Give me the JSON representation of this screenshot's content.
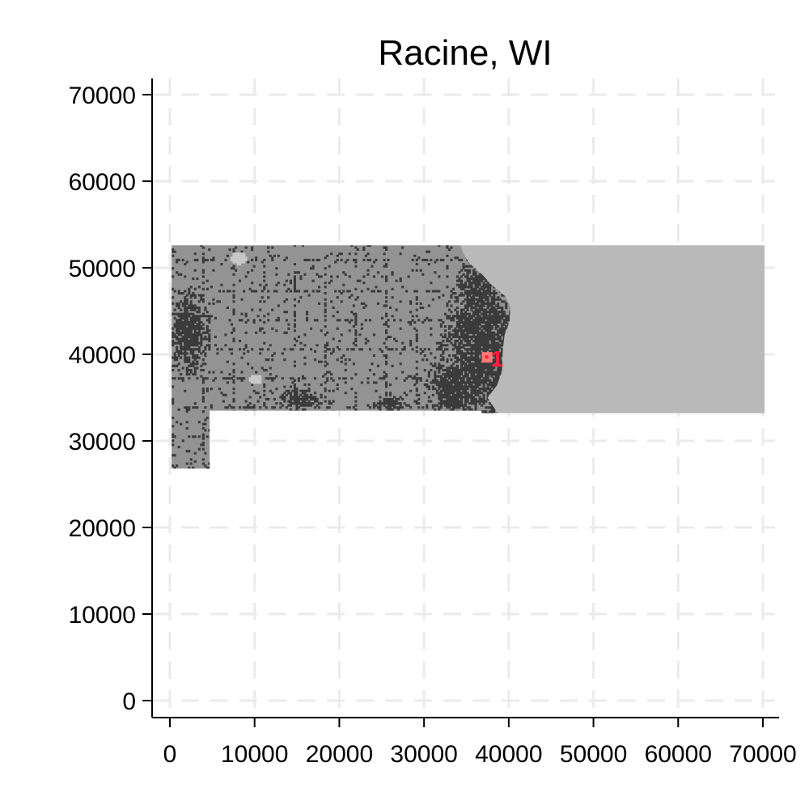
{
  "chart_data": {
    "type": "raster-map",
    "title": "Racine, WI",
    "xlabel": "",
    "ylabel": "",
    "xlim": [
      -2000,
      72000
    ],
    "ylim": [
      -2000,
      72000
    ],
    "x_ticks": [
      0,
      10000,
      20000,
      30000,
      40000,
      50000,
      60000,
      70000
    ],
    "y_ticks": [
      0,
      10000,
      20000,
      30000,
      40000,
      50000,
      60000,
      70000
    ],
    "x_tick_labels": [
      "0",
      "10000",
      "20000",
      "30000",
      "40000",
      "50000",
      "60000",
      "70000"
    ],
    "y_tick_labels": [
      "0",
      "10000",
      "20000",
      "30000",
      "40000",
      "50000",
      "60000",
      "70000"
    ],
    "grid": true,
    "regions": [
      {
        "kind": "water",
        "color": "#b9b9b9",
        "polygon": [
          [
            34300,
            52600
          ],
          [
            70200,
            52600
          ],
          [
            70200,
            33200
          ],
          [
            38700,
            33200
          ],
          [
            37500,
            35000
          ],
          [
            38600,
            36400
          ],
          [
            39200,
            38000
          ],
          [
            39300,
            40500
          ],
          [
            39500,
            42200
          ],
          [
            40100,
            43800
          ],
          [
            40200,
            45500
          ],
          [
            39600,
            46700
          ],
          [
            38000,
            48000
          ],
          [
            36800,
            49300
          ],
          [
            35300,
            50600
          ],
          [
            34600,
            51800
          ]
        ]
      },
      {
        "kind": "land",
        "color": "#939393",
        "polygon": [
          [
            200,
            52600
          ],
          [
            34300,
            52600
          ],
          [
            34600,
            51800
          ],
          [
            35300,
            50600
          ],
          [
            36800,
            49300
          ],
          [
            38000,
            48000
          ],
          [
            39600,
            46700
          ],
          [
            40200,
            45500
          ],
          [
            40100,
            43800
          ],
          [
            39500,
            42200
          ],
          [
            39300,
            40500
          ],
          [
            39200,
            38000
          ],
          [
            38600,
            36400
          ],
          [
            37500,
            35000
          ],
          [
            38700,
            33200
          ],
          [
            36800,
            33200
          ],
          [
            36800,
            33500
          ],
          [
            4700,
            33500
          ],
          [
            4700,
            26800
          ],
          [
            200,
            26800
          ]
        ]
      }
    ],
    "development_color": "#3b3b3b",
    "urban_cores": [
      {
        "x": 36800,
        "y": 40500,
        "rx": 3500,
        "ry": 6500
      },
      {
        "x": 33500,
        "y": 36000,
        "rx": 2500,
        "ry": 2500
      },
      {
        "x": 36000,
        "y": 47000,
        "rx": 1800,
        "ry": 2500
      },
      {
        "x": 2200,
        "y": 42500,
        "rx": 1700,
        "ry": 3500
      },
      {
        "x": 15200,
        "y": 34600,
        "rx": 1800,
        "ry": 900
      },
      {
        "x": 26000,
        "y": 34200,
        "rx": 1500,
        "ry": 700
      }
    ],
    "light_patches": [
      {
        "x": 8000,
        "y": 51000,
        "rx": 900,
        "ry": 700
      },
      {
        "x": 10000,
        "y": 37000,
        "rx": 700,
        "ry": 600
      }
    ],
    "points": [
      {
        "id": "1",
        "x": 37400,
        "y": 39700,
        "marker_color": "#ff7a7a",
        "text_color": "#ff1e3c"
      }
    ]
  }
}
